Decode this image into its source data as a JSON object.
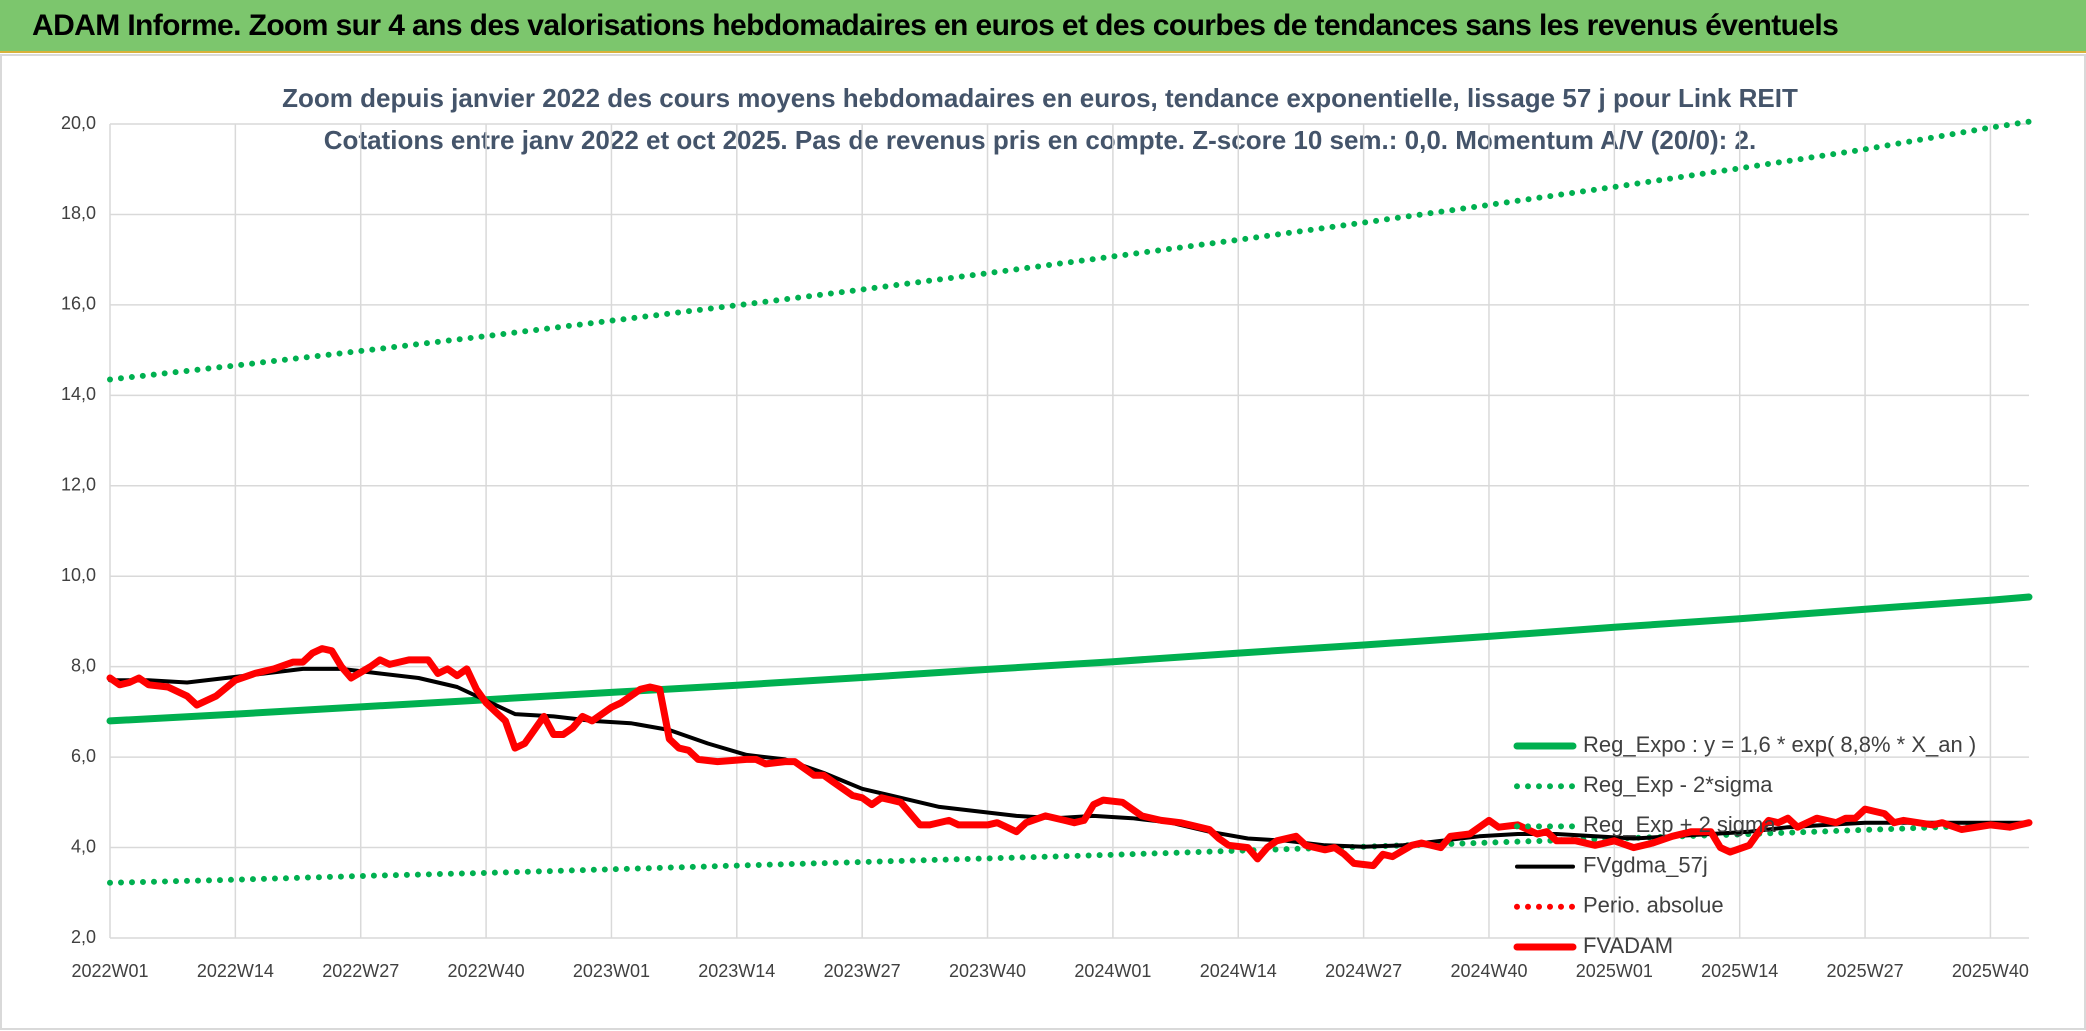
{
  "header": {
    "title": "ADAM Informe. Zoom sur 4 ans des valorisations hebdomadaires en euros et des courbes de tendances sans les revenus éventuels"
  },
  "chart_data": {
    "type": "line",
    "title": "Zoom depuis janvier 2022 des cours moyens hebdomadaires en euros, tendance exponentielle, lissage 57 j pour Link REIT",
    "subtitle": "Cotations entre janv 2022 et oct 2025. Pas de revenus pris en compte. Z-score 10 sem.: 0,0. Momentum A/V (20/0): 2.",
    "xlim": [
      0,
      199
    ],
    "xticks": [
      {
        "value": 0,
        "label": "2022W01"
      },
      {
        "value": 13,
        "label": "2022W14"
      },
      {
        "value": 26,
        "label": "2022W27"
      },
      {
        "value": 39,
        "label": "2022W40"
      },
      {
        "value": 52,
        "label": "2023W01"
      },
      {
        "value": 65,
        "label": "2023W14"
      },
      {
        "value": 78,
        "label": "2023W27"
      },
      {
        "value": 91,
        "label": "2023W40"
      },
      {
        "value": 104,
        "label": "2024W01"
      },
      {
        "value": 117,
        "label": "2024W14"
      },
      {
        "value": 130,
        "label": "2024W27"
      },
      {
        "value": 143,
        "label": "2024W40"
      },
      {
        "value": 156,
        "label": "2025W01"
      },
      {
        "value": 169,
        "label": "2025W14"
      },
      {
        "value": 182,
        "label": "2025W27"
      },
      {
        "value": 195,
        "label": "2025W40"
      }
    ],
    "ylim": [
      2,
      20
    ],
    "yticks": [
      {
        "value": 2,
        "label": "2,0"
      },
      {
        "value": 4,
        "label": "4,0"
      },
      {
        "value": 6,
        "label": "6,0"
      },
      {
        "value": 8,
        "label": "8,0"
      },
      {
        "value": 10,
        "label": "10,0"
      },
      {
        "value": 12,
        "label": "12,0"
      },
      {
        "value": 14,
        "label": "14,0"
      },
      {
        "value": 16,
        "label": "16,0"
      },
      {
        "value": 18,
        "label": "18,0"
      },
      {
        "value": 20,
        "label": "20,0"
      }
    ],
    "grid": true,
    "legend": "lower right",
    "series": [
      {
        "name": "Reg_Expo : y = 1,6 * exp( 8,8% *  X_an )",
        "color": "#00b050",
        "dotted": false,
        "x": [
          0,
          13,
          26,
          39,
          52,
          65,
          78,
          91,
          104,
          117,
          130,
          143,
          156,
          169,
          182,
          195,
          199
        ],
        "values": [
          6.8,
          6.95,
          7.11,
          7.27,
          7.43,
          7.59,
          7.76,
          7.94,
          8.11,
          8.3,
          8.48,
          8.67,
          8.87,
          9.06,
          9.27,
          9.47,
          9.54
        ]
      },
      {
        "name": "Reg_Exp - 2*sigma",
        "color": "#00b050",
        "dotted": true,
        "x": [
          0,
          13,
          26,
          39,
          52,
          65,
          78,
          91,
          104,
          117,
          130,
          143,
          156,
          169,
          182,
          195,
          199
        ],
        "values": [
          3.22,
          3.29,
          3.37,
          3.44,
          3.52,
          3.6,
          3.68,
          3.76,
          3.84,
          3.93,
          4.02,
          4.11,
          4.2,
          4.29,
          4.39,
          4.49,
          4.52
        ]
      },
      {
        "name": "Reg_Exp + 2 sigma",
        "color": "#00b050",
        "dotted": true,
        "x": [
          0,
          13,
          26,
          39,
          52,
          65,
          78,
          91,
          104,
          117,
          130,
          143,
          156,
          169,
          182,
          195,
          199
        ],
        "values": [
          14.35,
          14.66,
          14.98,
          15.31,
          15.65,
          15.99,
          16.34,
          16.7,
          17.07,
          17.44,
          17.82,
          18.21,
          18.61,
          19.02,
          19.44,
          19.92,
          20.05
        ]
      },
      {
        "name": "FVgdma_57j",
        "color": "#000000",
        "dotted": false,
        "x": [
          0,
          4,
          8,
          12,
          16,
          20,
          24,
          28,
          32,
          36,
          40,
          42,
          46,
          50,
          54,
          58,
          62,
          66,
          70,
          74,
          78,
          82,
          86,
          90,
          94,
          98,
          102,
          106,
          110,
          114,
          118,
          122,
          126,
          130,
          134,
          138,
          142,
          146,
          150,
          154,
          158,
          162,
          166,
          170,
          174,
          178,
          182,
          186,
          190,
          194,
          199
        ],
        "values": [
          7.7,
          7.7,
          7.65,
          7.75,
          7.85,
          7.95,
          7.95,
          7.85,
          7.75,
          7.55,
          7.15,
          6.95,
          6.9,
          6.8,
          6.75,
          6.6,
          6.3,
          6.05,
          5.95,
          5.65,
          5.3,
          5.1,
          4.9,
          4.8,
          4.7,
          4.65,
          4.7,
          4.65,
          4.55,
          4.35,
          4.2,
          4.15,
          4.05,
          4.02,
          4.05,
          4.15,
          4.25,
          4.3,
          4.3,
          4.25,
          4.2,
          4.25,
          4.3,
          4.35,
          4.45,
          4.5,
          4.55,
          4.55,
          4.55,
          4.55,
          4.55
        ]
      },
      {
        "name": "Perio. absolue",
        "color": "#ff0000",
        "dotted": true
      },
      {
        "name": "FVADAM",
        "color": "#ff0000",
        "dotted": false,
        "x": [
          0,
          1,
          2,
          3,
          4,
          6,
          8,
          9,
          11,
          13,
          15,
          17,
          19,
          20,
          21,
          22,
          23,
          24,
          25,
          27,
          28,
          29,
          31,
          33,
          34,
          35,
          36,
          37,
          38,
          39,
          40,
          41,
          42,
          43,
          44,
          45,
          46,
          47,
          48,
          49,
          50,
          52,
          53,
          55,
          56,
          57,
          58,
          59,
          60,
          61,
          63,
          66,
          67,
          68,
          70,
          71,
          72,
          73,
          74,
          75,
          77,
          78,
          79,
          80,
          82,
          83,
          84,
          85,
          87,
          88,
          91,
          92,
          94,
          95,
          97,
          99,
          100,
          101,
          102,
          103,
          105,
          107,
          109,
          111,
          112,
          114,
          115,
          116,
          118,
          119,
          120,
          121,
          123,
          124,
          126,
          127,
          128,
          129,
          131,
          132,
          133,
          135,
          136,
          138,
          139,
          141,
          142,
          143,
          144,
          146,
          148,
          149,
          150,
          152,
          154,
          156,
          158,
          160,
          162,
          164,
          166,
          167,
          168,
          170,
          171,
          172,
          173,
          174,
          175,
          176,
          177,
          179,
          180,
          181,
          182,
          184,
          185,
          186,
          189,
          190,
          192,
          195,
          197,
          199
        ],
        "values": [
          7.75,
          7.6,
          7.65,
          7.75,
          7.6,
          7.55,
          7.35,
          7.15,
          7.35,
          7.7,
          7.85,
          7.95,
          8.1,
          8.1,
          8.3,
          8.4,
          8.35,
          8.0,
          7.75,
          8.0,
          8.15,
          8.05,
          8.15,
          8.15,
          7.85,
          7.95,
          7.8,
          7.95,
          7.5,
          7.2,
          7.0,
          6.8,
          6.2,
          6.3,
          6.6,
          6.9,
          6.5,
          6.5,
          6.65,
          6.9,
          6.8,
          7.1,
          7.2,
          7.5,
          7.55,
          7.5,
          6.4,
          6.2,
          6.15,
          5.95,
          5.9,
          5.95,
          5.95,
          5.85,
          5.9,
          5.9,
          5.75,
          5.6,
          5.6,
          5.45,
          5.15,
          5.1,
          4.95,
          5.1,
          5.0,
          4.75,
          4.5,
          4.5,
          4.6,
          4.5,
          4.5,
          4.55,
          4.35,
          4.55,
          4.7,
          4.6,
          4.55,
          4.6,
          4.95,
          5.05,
          5.0,
          4.7,
          4.6,
          4.55,
          4.5,
          4.4,
          4.2,
          4.05,
          4.0,
          3.75,
          4.0,
          4.15,
          4.25,
          4.05,
          3.95,
          4.0,
          3.85,
          3.65,
          3.6,
          3.85,
          3.8,
          4.05,
          4.1,
          4.0,
          4.25,
          4.3,
          4.45,
          4.6,
          4.45,
          4.5,
          4.3,
          4.35,
          4.15,
          4.15,
          4.05,
          4.15,
          4.0,
          4.1,
          4.25,
          4.35,
          4.35,
          4.0,
          3.9,
          4.05,
          4.35,
          4.6,
          4.55,
          4.65,
          4.45,
          4.55,
          4.65,
          4.55,
          4.65,
          4.65,
          4.85,
          4.75,
          4.55,
          4.6,
          4.5,
          4.55,
          4.4,
          4.5,
          4.45,
          4.55
        ]
      }
    ]
  }
}
